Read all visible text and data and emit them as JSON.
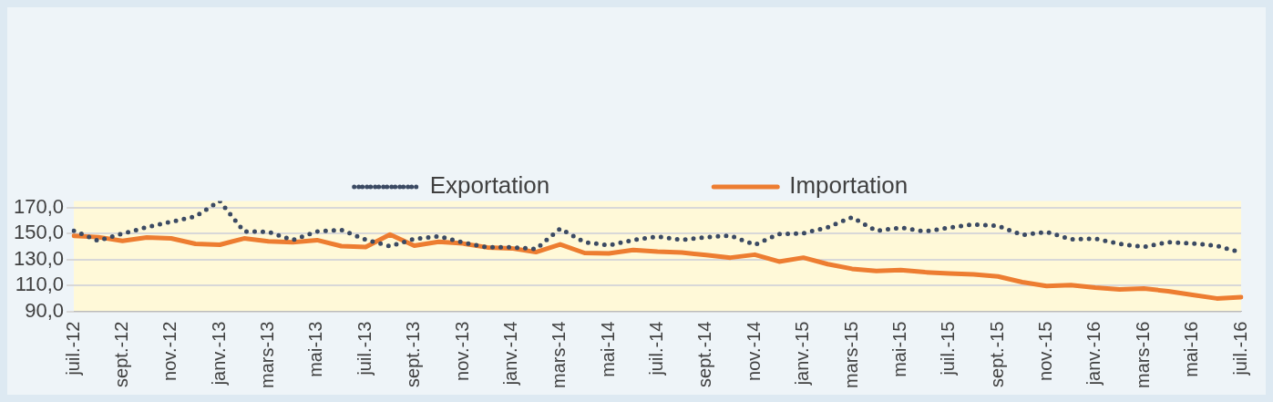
{
  "chart_data": {
    "type": "line",
    "categories": [
      "juil.-12",
      null,
      "sept.-12",
      null,
      "nov.-12",
      null,
      "janv.-13",
      null,
      "mars-13",
      null,
      "mai-13",
      null,
      "juil.-13",
      null,
      "sept.-13",
      null,
      "nov.-13",
      null,
      "janv.-14",
      null,
      "mars-14",
      null,
      "mai-14",
      null,
      "juil.-14",
      null,
      "sept.-14",
      null,
      "nov.-14",
      null,
      "janv.-15",
      null,
      "mars-15",
      null,
      "mai-15",
      null,
      "juil.-15",
      null,
      "sept.-15",
      null,
      "nov.-15",
      null,
      "janv.-16",
      null,
      "mars-16",
      null,
      "mai-16",
      null,
      "juil.-16"
    ],
    "series": [
      {
        "name": "Exportation",
        "color": "#3b4a63",
        "line_style": "dotted",
        "values": [
          152.1,
          144.4,
          149.9,
          154.8,
          159,
          163.1,
          175,
          151.5,
          151.3,
          144.9,
          151.5,
          152.8,
          145.2,
          140.2,
          145.8,
          147.9,
          143,
          139.4,
          139.4,
          138,
          153.7,
          143.3,
          140.9,
          144.9,
          147.7,
          145.1,
          147.1,
          148.4,
          141.3,
          149.6,
          150.1,
          154.8,
          162.5,
          152,
          154.5,
          151.5,
          154.5,
          157,
          155.9,
          148.8,
          151.2,
          145.5,
          146,
          142,
          139.6,
          143.3,
          142.4,
          140.5,
          135.3
        ]
      },
      {
        "name": "Importation",
        "color": "#ed7d31",
        "line_style": "solid",
        "values": [
          148.2,
          147.2,
          144.3,
          146.9,
          146.2,
          142,
          141.3,
          146.2,
          143.9,
          143.3,
          144.9,
          140.3,
          139.6,
          149.2,
          140.6,
          143.6,
          142.3,
          139.3,
          138.6,
          135.7,
          141.6,
          135,
          134.7,
          137.3,
          136,
          135.3,
          133.4,
          131.4,
          133.7,
          128.4,
          131.4,
          126.4,
          122.8,
          121.2,
          121.8,
          120.2,
          119.2,
          118.5,
          116.9,
          112.6,
          109.6,
          110.3,
          108.3,
          107,
          107.6,
          105.6,
          102.7,
          100,
          101
        ]
      }
    ],
    "ylim": [
      90,
      175
    ],
    "yticks": [
      {
        "value": 90,
        "label": "90,0"
      },
      {
        "value": 110,
        "label": "110,0"
      },
      {
        "value": 130,
        "label": "130,0"
      },
      {
        "value": 150,
        "label": "150,0"
      },
      {
        "value": 170,
        "label": "170,0"
      }
    ],
    "grid": "y",
    "legend": "top",
    "marker": "none"
  }
}
